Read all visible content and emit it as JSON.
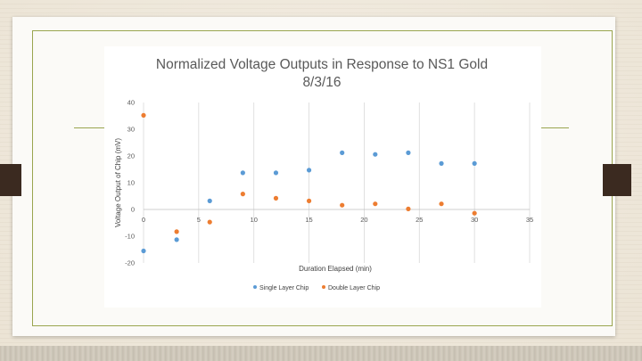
{
  "slide": {
    "background": "#efe9dd",
    "accent_rule_color": "#9aa54f",
    "tab_color": "#3b2a20"
  },
  "chart_data": {
    "type": "scatter",
    "title_lines": [
      "Normalized Voltage Outputs in Response to NS1 Gold",
      "8/3/16"
    ],
    "xlabel": "Duration Elapsed (min)",
    "ylabel": "Voltage Output of Chip (mV)",
    "xlim": [
      0,
      35
    ],
    "ylim": [
      -20,
      40
    ],
    "x_ticks": [
      "0",
      "5",
      "10",
      "15",
      "20",
      "25",
      "30",
      "35"
    ],
    "y_ticks": [
      "-20",
      "-10",
      "0",
      "10",
      "20",
      "30",
      "40"
    ],
    "grid": "vertical",
    "legend_position": "bottom",
    "series": [
      {
        "name": "Single Layer Chip",
        "color": "#5b9bd5",
        "x": [
          0,
          3,
          6,
          9,
          12,
          15,
          18,
          21,
          24,
          27,
          30
        ],
        "y": [
          -15.5,
          -11.3,
          3.2,
          13.7,
          13.7,
          14.7,
          21.2,
          20.6,
          21.2,
          17.2,
          17.2
        ]
      },
      {
        "name": "Double Layer Chip",
        "color": "#ed7d31",
        "x": [
          0,
          3,
          6,
          9,
          12,
          15,
          18,
          21,
          24,
          27,
          30
        ],
        "y": [
          35.2,
          -8.3,
          -4.7,
          5.8,
          4.2,
          3.2,
          1.6,
          2.1,
          0.2,
          2.1,
          -1.4
        ]
      }
    ]
  }
}
